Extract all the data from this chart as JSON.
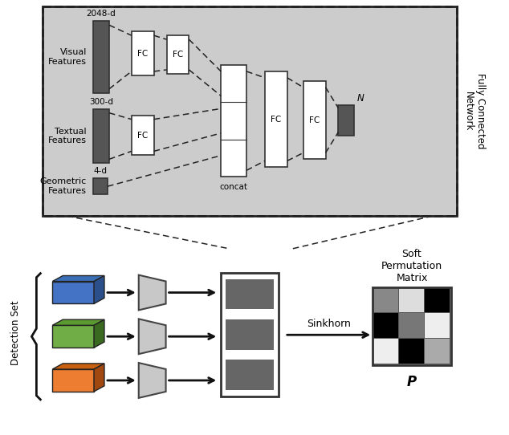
{
  "bg_color": "#ffffff",
  "top_box_bg": "#cccccc",
  "dark_rect": "#555555",
  "white_rect": "#ffffff",
  "dash_color": "#222222",
  "arrow_color": "#111111",
  "trap_color": "#c8c8c8",
  "out_rect_color": "#666666",
  "matrix_colors": [
    [
      "#888888",
      "#dddddd",
      "#000000"
    ],
    [
      "#000000",
      "#777777",
      "#eeeeee"
    ],
    [
      "#eeeeee",
      "#000000",
      "#aaaaaa"
    ]
  ],
  "box3d_colors": [
    [
      "#3B6FB5",
      "#4472C4",
      "#2B4F8A"
    ],
    [
      "#5A9A30",
      "#70AD47",
      "#3A6A20"
    ],
    [
      "#C96010",
      "#ED7D31",
      "#A04810"
    ]
  ],
  "label_fc_network": "Fully Connected\nNetwork",
  "label_visual": "Visual\nFeatures",
  "label_textual": "Textual\nFeatures",
  "label_geometric": "Geometric\nFeatures",
  "label_2048": "2048-d",
  "label_300": "300-d",
  "label_4": "4-d",
  "label_concat": "concat",
  "label_N": "$N$",
  "label_FC": "FC",
  "label_detection": "Detection Set",
  "label_sinkhorn": "Sinkhorn",
  "label_soft": "Soft\nPermutation\nMatrix",
  "label_P": "$\\boldsymbol{P}$"
}
